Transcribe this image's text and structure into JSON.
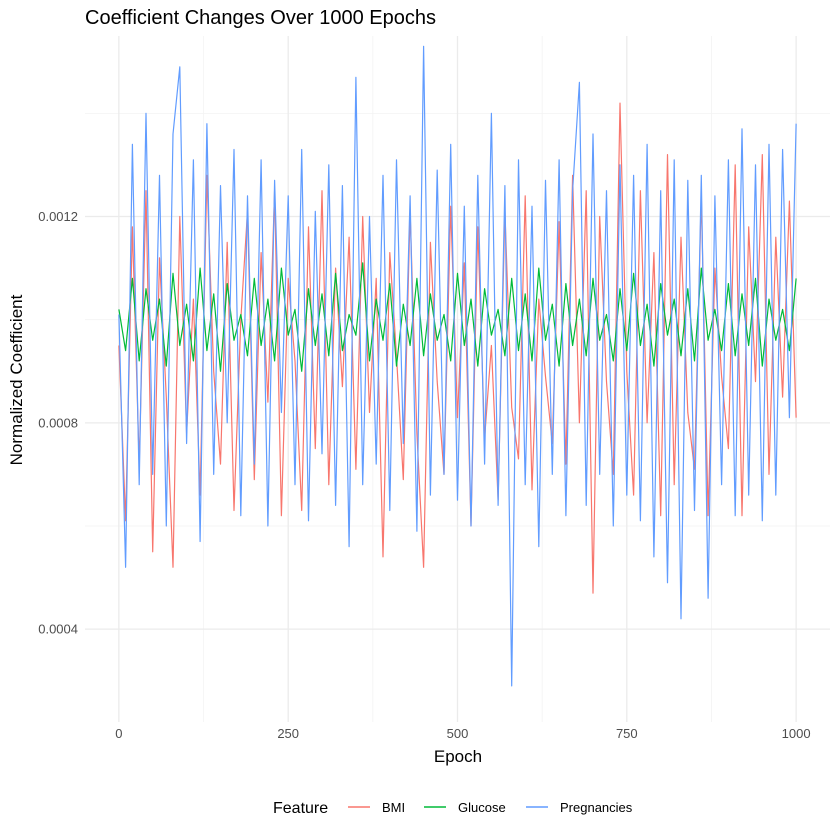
{
  "chart_data": {
    "type": "line",
    "title": "Coefficient Changes Over 1000 Epochs",
    "xlabel": "Epoch",
    "ylabel": "Normalized Coefficient",
    "xlim": [
      -50,
      1050
    ],
    "ylim": [
      0.00022,
      0.00155
    ],
    "x_ticks": [
      0,
      250,
      500,
      750,
      1000
    ],
    "x_tick_labels": [
      "0",
      "250",
      "500",
      "750",
      "1000"
    ],
    "y_ticks": [
      0.0004,
      0.0008,
      0.0012
    ],
    "y_tick_labels": [
      "0.0004",
      "0.0008",
      "0.0012"
    ],
    "grid": true,
    "legend": {
      "title": "Feature",
      "placement": "bottom",
      "entries": [
        "BMI",
        "Glucose",
        "Pregnancies"
      ]
    },
    "series": [
      {
        "name": "BMI",
        "color": "#F8766D",
        "x": [
          0,
          10,
          20,
          30,
          40,
          50,
          60,
          70,
          80,
          90,
          100,
          110,
          120,
          130,
          140,
          150,
          160,
          170,
          180,
          190,
          200,
          210,
          220,
          230,
          240,
          250,
          260,
          270,
          280,
          290,
          300,
          310,
          320,
          330,
          340,
          350,
          360,
          370,
          380,
          390,
          400,
          410,
          420,
          430,
          440,
          450,
          460,
          470,
          480,
          490,
          500,
          510,
          520,
          530,
          540,
          550,
          560,
          570,
          580,
          590,
          600,
          610,
          620,
          630,
          640,
          650,
          660,
          670,
          680,
          690,
          700,
          710,
          720,
          730,
          740,
          750,
          760,
          770,
          780,
          790,
          800,
          810,
          820,
          830,
          840,
          850,
          860,
          870,
          880,
          890,
          900,
          910,
          920,
          930,
          940,
          950,
          960,
          970,
          980,
          990,
          1000
        ],
        "values": [
          0.00095,
          0.00061,
          0.00118,
          0.00072,
          0.00125,
          0.00055,
          0.00112,
          0.00085,
          0.00052,
          0.0012,
          0.00078,
          0.00104,
          0.00066,
          0.00128,
          0.0009,
          0.00072,
          0.00115,
          0.00063,
          0.001,
          0.00121,
          0.00069,
          0.00113,
          0.00084,
          0.00125,
          0.00062,
          0.00108,
          0.00092,
          0.00063,
          0.00118,
          0.00075,
          0.00125,
          0.00068,
          0.0011,
          0.00087,
          0.00116,
          0.00071,
          0.0012,
          0.00082,
          0.00108,
          0.00054,
          0.00113,
          0.00093,
          0.00069,
          0.00121,
          0.00078,
          0.00052,
          0.00115,
          0.00088,
          0.0007,
          0.00122,
          0.00081,
          0.00111,
          0.0006,
          0.00118,
          0.00077,
          0.00095,
          0.00065,
          0.00121,
          0.00083,
          0.00073,
          0.00124,
          0.00067,
          0.00104,
          0.00089,
          0.00076,
          0.00119,
          0.00072,
          0.00128,
          0.0008,
          0.00125,
          0.00047,
          0.0012,
          0.00088,
          0.0007,
          0.00142,
          0.0009,
          0.00066,
          0.00125,
          0.0008,
          0.00113,
          0.00062,
          0.00132,
          0.00068,
          0.00116,
          0.00082,
          0.00071,
          0.00124,
          0.00062,
          0.0011,
          0.00089,
          0.00075,
          0.0013,
          0.00062,
          0.00118,
          0.00088,
          0.00132,
          0.0007,
          0.00116,
          0.00085,
          0.00123,
          0.00081
        ]
      },
      {
        "name": "Glucose",
        "color": "#00BA38",
        "x": [
          0,
          10,
          20,
          30,
          40,
          50,
          60,
          70,
          80,
          90,
          100,
          110,
          120,
          130,
          140,
          150,
          160,
          170,
          180,
          190,
          200,
          210,
          220,
          230,
          240,
          250,
          260,
          270,
          280,
          290,
          300,
          310,
          320,
          330,
          340,
          350,
          360,
          370,
          380,
          390,
          400,
          410,
          420,
          430,
          440,
          450,
          460,
          470,
          480,
          490,
          500,
          510,
          520,
          530,
          540,
          550,
          560,
          570,
          580,
          590,
          600,
          610,
          620,
          630,
          640,
          650,
          660,
          670,
          680,
          690,
          700,
          710,
          720,
          730,
          740,
          750,
          760,
          770,
          780,
          790,
          800,
          810,
          820,
          830,
          840,
          850,
          860,
          870,
          880,
          890,
          900,
          910,
          920,
          930,
          940,
          950,
          960,
          970,
          980,
          990,
          1000
        ],
        "values": [
          0.00102,
          0.00094,
          0.00108,
          0.00092,
          0.00106,
          0.00096,
          0.00104,
          0.00091,
          0.00109,
          0.00095,
          0.00103,
          0.00092,
          0.0011,
          0.00094,
          0.00105,
          0.0009,
          0.00107,
          0.00096,
          0.00101,
          0.00093,
          0.00108,
          0.00095,
          0.00104,
          0.00092,
          0.0011,
          0.00097,
          0.00102,
          0.0009,
          0.00106,
          0.00095,
          0.00105,
          0.00093,
          0.00109,
          0.00094,
          0.00101,
          0.00097,
          0.00111,
          0.00092,
          0.00104,
          0.00096,
          0.00107,
          0.00091,
          0.00103,
          0.00095,
          0.00108,
          0.00093,
          0.00105,
          0.00096,
          0.00101,
          0.00092,
          0.00109,
          0.00095,
          0.00104,
          0.00091,
          0.00106,
          0.00097,
          0.00102,
          0.00093,
          0.00108,
          0.00094,
          0.00105,
          0.00092,
          0.0011,
          0.00096,
          0.00103,
          0.00091,
          0.00107,
          0.00095,
          0.00104,
          0.00093,
          0.00108,
          0.00096,
          0.00101,
          0.00092,
          0.00106,
          0.00094,
          0.00109,
          0.00095,
          0.00103,
          0.00091,
          0.00107,
          0.00097,
          0.00104,
          0.00093,
          0.00106,
          0.00092,
          0.0011,
          0.00096,
          0.00102,
          0.00094,
          0.00107,
          0.00093,
          0.00105,
          0.00095,
          0.00108,
          0.00091,
          0.00104,
          0.00096,
          0.00102,
          0.00094,
          0.00108
        ]
      },
      {
        "name": "Pregnancies",
        "color": "#619CFF",
        "x": [
          0,
          10,
          20,
          30,
          40,
          50,
          60,
          70,
          80,
          90,
          100,
          110,
          120,
          130,
          140,
          150,
          160,
          170,
          180,
          190,
          200,
          210,
          220,
          230,
          240,
          250,
          260,
          270,
          280,
          290,
          300,
          310,
          320,
          330,
          340,
          350,
          360,
          370,
          380,
          390,
          400,
          410,
          420,
          430,
          440,
          450,
          460,
          470,
          480,
          490,
          500,
          510,
          520,
          530,
          540,
          550,
          560,
          570,
          580,
          590,
          600,
          610,
          620,
          630,
          640,
          650,
          660,
          670,
          680,
          690,
          700,
          710,
          720,
          730,
          740,
          750,
          760,
          770,
          780,
          790,
          800,
          810,
          820,
          830,
          840,
          850,
          860,
          870,
          880,
          890,
          900,
          910,
          920,
          930,
          940,
          950,
          960,
          970,
          980,
          990,
          1000
        ],
        "values": [
          0.00101,
          0.00052,
          0.00134,
          0.00068,
          0.0014,
          0.0007,
          0.00128,
          0.0006,
          0.00136,
          0.00149,
          0.00076,
          0.00131,
          0.00057,
          0.00138,
          0.0007,
          0.00126,
          0.0008,
          0.00133,
          0.00062,
          0.00124,
          0.00072,
          0.00131,
          0.0006,
          0.00127,
          0.00082,
          0.00124,
          0.00068,
          0.00133,
          0.00061,
          0.00121,
          0.00074,
          0.0013,
          0.00064,
          0.00126,
          0.00056,
          0.00147,
          0.00068,
          0.0012,
          0.00072,
          0.00128,
          0.00063,
          0.00131,
          0.00076,
          0.00124,
          0.00059,
          0.00153,
          0.00066,
          0.00129,
          0.0007,
          0.00134,
          0.00065,
          0.00122,
          0.0006,
          0.00128,
          0.00072,
          0.0014,
          0.00064,
          0.00126,
          0.00029,
          0.00131,
          0.00068,
          0.00122,
          0.00056,
          0.00127,
          0.0007,
          0.00131,
          0.00062,
          0.00125,
          0.00146,
          0.00064,
          0.00136,
          0.0007,
          0.00125,
          0.0006,
          0.0013,
          0.00066,
          0.00128,
          0.00061,
          0.00134,
          0.00054,
          0.00125,
          0.00049,
          0.00131,
          0.00042,
          0.00127,
          0.00063,
          0.00128,
          0.00046,
          0.00124,
          0.00068,
          0.00131,
          0.00062,
          0.00137,
          0.00066,
          0.0013,
          0.00061,
          0.00134,
          0.00066,
          0.00133,
          0.00081,
          0.00138
        ]
      }
    ]
  }
}
